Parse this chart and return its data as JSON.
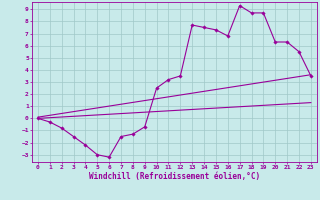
{
  "background_color": "#c8eaea",
  "grid_color": "#a0c8c8",
  "line_color": "#990099",
  "marker_color": "#990099",
  "xlabel": "Windchill (Refroidissement éolien,°C)",
  "xlim": [
    -0.5,
    23.5
  ],
  "ylim": [
    -3.6,
    9.6
  ],
  "xticks": [
    0,
    1,
    2,
    3,
    4,
    5,
    6,
    7,
    8,
    9,
    10,
    11,
    12,
    13,
    14,
    15,
    16,
    17,
    18,
    19,
    20,
    21,
    22,
    23
  ],
  "yticks": [
    -3,
    -2,
    -1,
    0,
    1,
    2,
    3,
    4,
    5,
    6,
    7,
    8,
    9
  ],
  "line1_x": [
    0,
    1,
    2,
    3,
    4,
    5,
    6,
    7,
    8,
    9,
    10,
    11,
    12,
    13,
    14,
    15,
    16,
    17,
    18,
    19,
    20,
    21,
    22,
    23
  ],
  "line1_y": [
    0.0,
    -0.3,
    -0.8,
    -1.5,
    -2.2,
    -3.0,
    -3.2,
    -1.5,
    -1.3,
    -0.7,
    2.5,
    3.2,
    3.5,
    7.7,
    7.5,
    7.3,
    6.8,
    9.3,
    8.7,
    8.7,
    6.3,
    6.3,
    5.5,
    3.5
  ],
  "line2_x": [
    0,
    23
  ],
  "line2_y": [
    0.1,
    3.6
  ],
  "line3_x": [
    0,
    23
  ],
  "line3_y": [
    0.0,
    1.3
  ],
  "tick_fontsize": 4.5,
  "xlabel_fontsize": 5.5
}
